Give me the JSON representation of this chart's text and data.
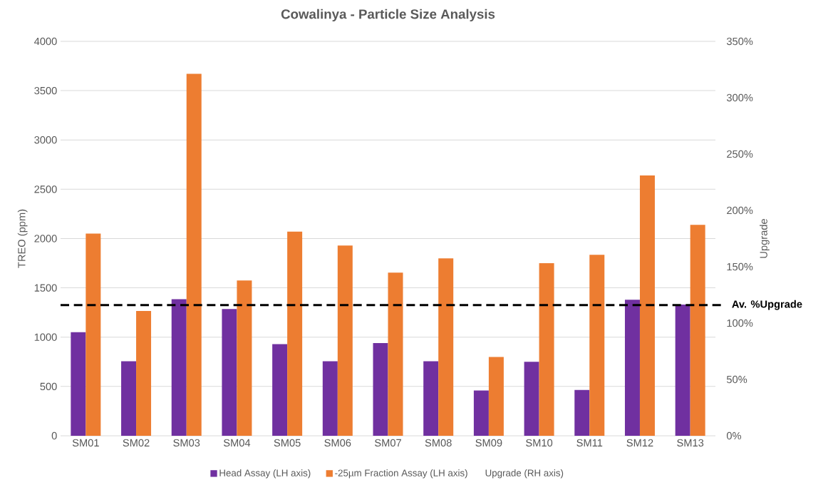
{
  "chart_data": {
    "type": "bar",
    "title": "Cowalinya - Particle Size Analysis",
    "ylabel": "TREO (ppm)",
    "y2label": "Upgrade",
    "categories": [
      "SM01",
      "SM02",
      "SM03",
      "SM04",
      "SM05",
      "SM06",
      "SM07",
      "SM08",
      "SM09",
      "SM10",
      "SM11",
      "SM12",
      "SM13"
    ],
    "series": [
      {
        "name": "Head Assay (LH axis)",
        "color": "#7030a0",
        "values": [
          1050,
          755,
          1385,
          1285,
          930,
          755,
          940,
          755,
          460,
          750,
          465,
          1380,
          1330
        ]
      },
      {
        "name": "-25µm Fraction Assay (LH axis)",
        "color": "#ed7d31",
        "values": [
          2050,
          1265,
          3670,
          1575,
          2070,
          1930,
          1655,
          1800,
          800,
          1750,
          1835,
          2640,
          2140
        ]
      },
      {
        "name": "Upgrade (RH axis)",
        "values": [
          null,
          null,
          null,
          null,
          null,
          null,
          null,
          null,
          null,
          null,
          null,
          null,
          null
        ]
      }
    ],
    "ylim": [
      0,
      4000
    ],
    "yticks": [
      0,
      500,
      1000,
      1500,
      2000,
      2500,
      3000,
      3500,
      4000
    ],
    "y2lim": [
      0,
      350
    ],
    "y2ticks": [
      {
        "value": 0,
        "label": "0%"
      },
      {
        "value": 50,
        "label": "50%"
      },
      {
        "value": 100,
        "label": "100%"
      },
      {
        "value": 150,
        "label": "150%"
      },
      {
        "value": 200,
        "label": "200%"
      },
      {
        "value": 250,
        "label": "250%"
      },
      {
        "value": 300,
        "label": "300%"
      },
      {
        "value": 350,
        "label": "350%"
      }
    ],
    "ref_lines": [
      {
        "axis": "y2",
        "value": 116,
        "label": "Av. %Upgrade",
        "color": "#000000",
        "line_style": "dashed"
      }
    ],
    "grid": "y",
    "legend": "bottom"
  }
}
